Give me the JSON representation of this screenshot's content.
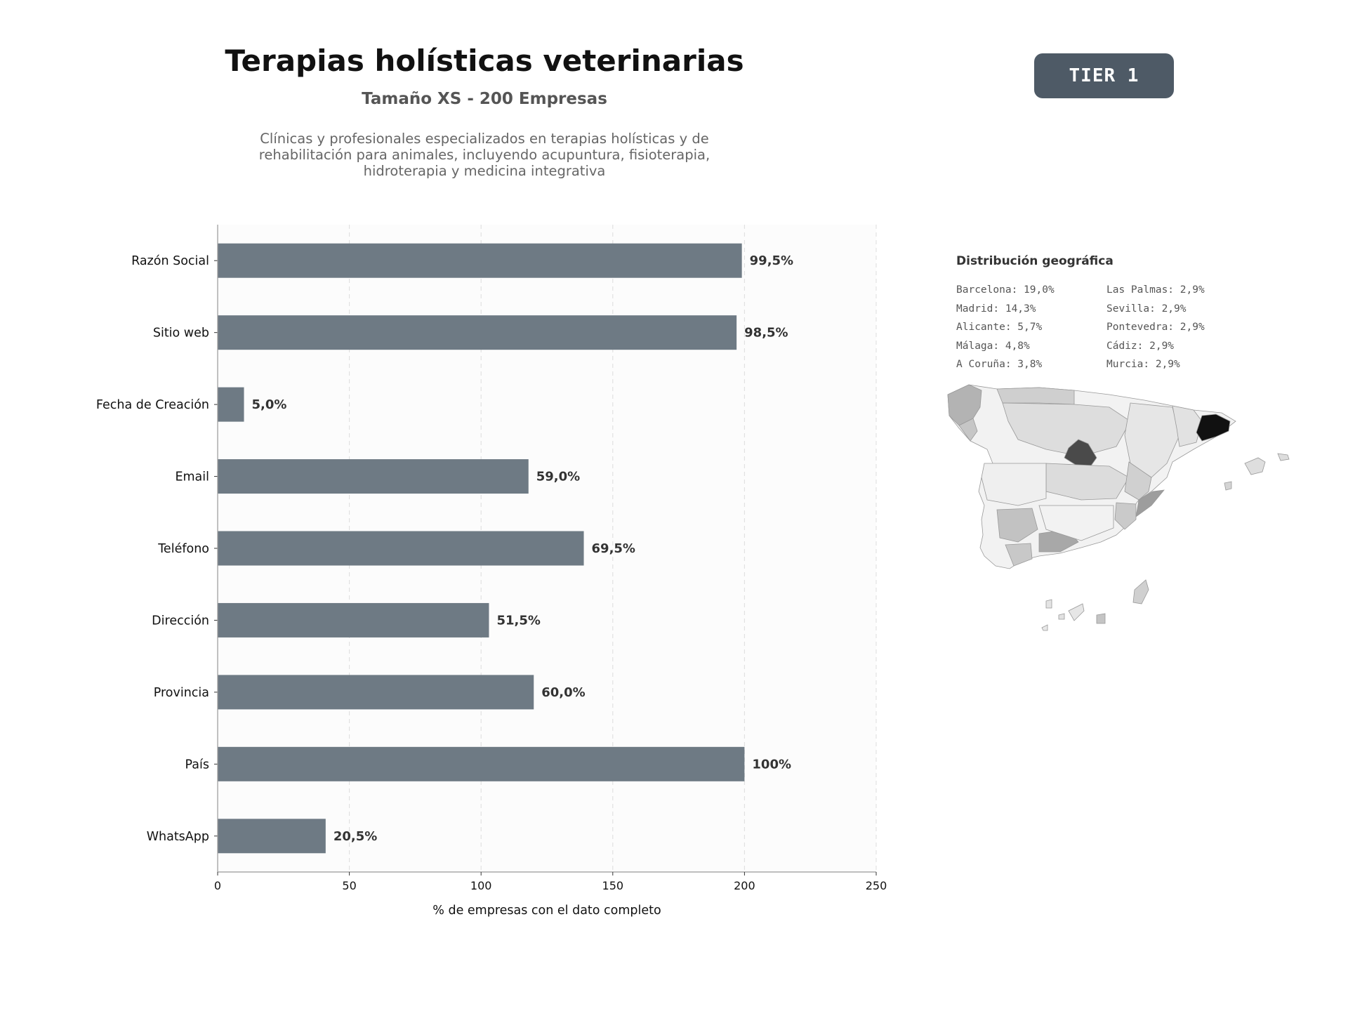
{
  "header": {
    "title": "Terapias holísticas veterinarias",
    "subtitle": "Tamaño XS - 200 Empresas",
    "description": "Clínicas y profesionales especializados en terapias holísticas y de rehabilitación para animales, incluyendo acupuntura, fisioterapia, hidroterapia y medicina integrativa",
    "tier_label": "TIER 1"
  },
  "chart_data": {
    "type": "bar",
    "orientation": "horizontal",
    "categories": [
      "Razón Social",
      "Sitio web",
      "Fecha de Creación",
      "Email",
      "Teléfono",
      "Dirección",
      "Provincia",
      "País",
      "WhatsApp"
    ],
    "values": [
      199,
      197,
      10,
      118,
      139,
      103,
      120,
      200,
      41
    ],
    "value_labels": [
      "99,5%",
      "98,5%",
      "5,0%",
      "59,0%",
      "69,5%",
      "51,5%",
      "60,0%",
      "100%",
      "20,5%"
    ],
    "xlabel": "% de empresas con el dato completo",
    "xlim": [
      0,
      250
    ],
    "xticks": [
      0,
      50,
      100,
      150,
      200,
      250
    ],
    "grid": true,
    "bar_color": "#6e7a84"
  },
  "geo": {
    "title": "Distribución geográfica",
    "col1": [
      "Barcelona: 19,0%",
      "Madrid: 14,3%",
      "Alicante: 5,7%",
      "Málaga: 4,8%",
      "A Coruña: 3,8%"
    ],
    "col2": [
      "Las Palmas: 2,9%",
      "Sevilla: 2,9%",
      "Pontevedra: 2,9%",
      "Cádiz: 2,9%",
      "Murcia: 2,9%"
    ]
  }
}
